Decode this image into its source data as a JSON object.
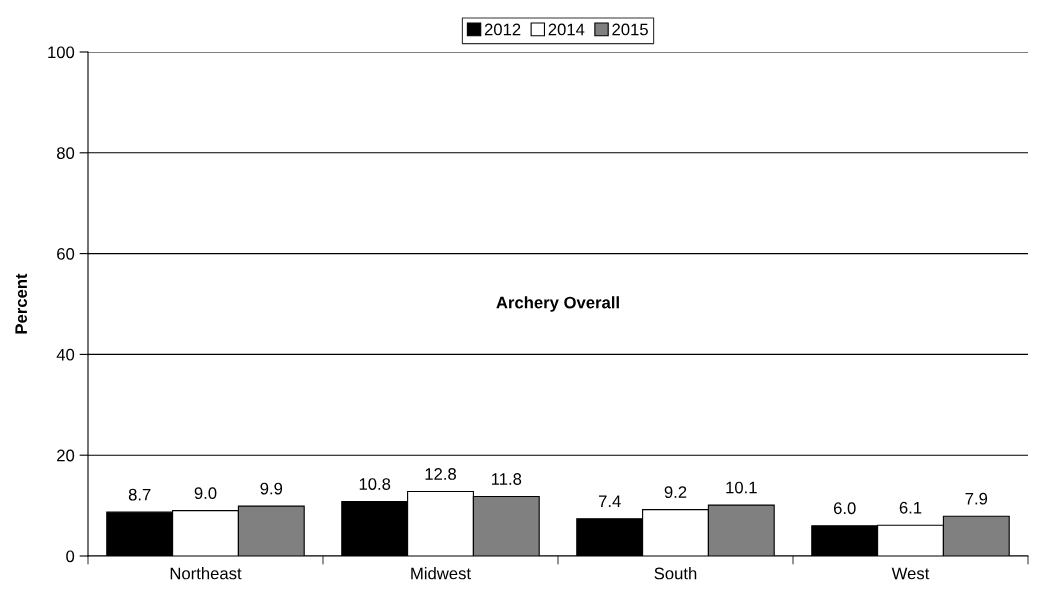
{
  "chart_data": {
    "type": "bar",
    "title": "Archery Overall",
    "ylabel": "Percent",
    "categories": [
      "Northeast",
      "Midwest",
      "South",
      "West"
    ],
    "series": [
      {
        "name": "2012",
        "color": "#000000",
        "values": [
          8.7,
          10.8,
          7.4,
          6.0
        ],
        "value_labels": [
          "8.7",
          "10.8",
          "7.4",
          "6.0"
        ]
      },
      {
        "name": "2014",
        "color": "#ffffff",
        "values": [
          9.0,
          12.8,
          9.2,
          6.1
        ],
        "value_labels": [
          "9.0",
          "12.8",
          "9.2",
          "6.1"
        ]
      },
      {
        "name": "2015",
        "color": "#808080",
        "values": [
          9.9,
          11.8,
          10.1,
          7.9
        ],
        "value_labels": [
          "9.9",
          "11.8",
          "10.1",
          "7.9"
        ]
      }
    ],
    "ylim": [
      0,
      100
    ],
    "yticks": [
      0,
      20,
      40,
      60,
      80,
      100
    ],
    "grid": "y",
    "legend": "top"
  }
}
